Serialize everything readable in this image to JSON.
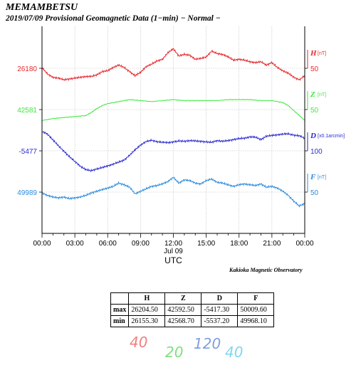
{
  "header": {
    "station": "MEMAMBETSU",
    "subtitle": "2019/07/09  Provisional Geomagnetic Data (1−min)  − Normal −"
  },
  "footer": {
    "observatory": "Kakioka Magnetic Observatory"
  },
  "colors": {
    "H": "#e8262b",
    "Z": "#3ce83c",
    "D": "#2b2bd0",
    "F": "#2c8be0"
  },
  "chart_data": {
    "type": "line",
    "xlabel": "UTC",
    "x_ticks": [
      "00:00",
      "03:00",
      "06:00",
      "09:00",
      "12:00",
      "15:00",
      "18:00",
      "21:00",
      "00:00"
    ],
    "x_date_label": "Jul 09",
    "x_date_at": "12:00",
    "xlim": [
      "00:00",
      "24:00"
    ],
    "grid": true,
    "series": [
      {
        "name": "H",
        "unit": "[nT]",
        "color": "#e8262b",
        "left_label": "26180",
        "right_label": "50",
        "points": [
          [
            0,
            26181
          ],
          [
            0.5,
            26173
          ],
          [
            1,
            26169
          ],
          [
            1.5,
            26168
          ],
          [
            2,
            26166
          ],
          [
            2.5,
            26167
          ],
          [
            3,
            26168
          ],
          [
            3.5,
            26169
          ],
          [
            4,
            26170
          ],
          [
            4.5,
            26170
          ],
          [
            5,
            26172
          ],
          [
            5.5,
            26176
          ],
          [
            6,
            26177
          ],
          [
            6.5,
            26181
          ],
          [
            7,
            26184
          ],
          [
            7.5,
            26181
          ],
          [
            8,
            26176
          ],
          [
            8.5,
            26171
          ],
          [
            9,
            26175
          ],
          [
            9.5,
            26182
          ],
          [
            10,
            26185
          ],
          [
            10.5,
            26189
          ],
          [
            11,
            26191
          ],
          [
            11.5,
            26199
          ],
          [
            12,
            26204
          ],
          [
            12.5,
            26195
          ],
          [
            13,
            26197
          ],
          [
            13.5,
            26196
          ],
          [
            14,
            26191
          ],
          [
            14.5,
            26192
          ],
          [
            15,
            26194
          ],
          [
            15.5,
            26201
          ],
          [
            16,
            26198
          ],
          [
            16.5,
            26197
          ],
          [
            17,
            26194
          ],
          [
            17.5,
            26190
          ],
          [
            18,
            26191
          ],
          [
            18.5,
            26190
          ],
          [
            19,
            26188
          ],
          [
            19.5,
            26187
          ],
          [
            20,
            26188
          ],
          [
            20.5,
            26184
          ],
          [
            21,
            26187
          ],
          [
            21.5,
            26181
          ],
          [
            22,
            26177
          ],
          [
            22.5,
            26174
          ],
          [
            23,
            26169
          ],
          [
            23.5,
            26166
          ],
          [
            24,
            26171
          ]
        ]
      },
      {
        "name": "Z",
        "unit": "[nT]",
        "color": "#3ce83c",
        "left_label": "42581",
        "right_label": "50",
        "points": [
          [
            0,
            42570
          ],
          [
            1,
            42572
          ],
          [
            2,
            42573
          ],
          [
            3,
            42574
          ],
          [
            4,
            42575
          ],
          [
            4.5,
            42578
          ],
          [
            5,
            42582
          ],
          [
            5.5,
            42585
          ],
          [
            6,
            42587
          ],
          [
            7,
            42589
          ],
          [
            8,
            42591
          ],
          [
            9,
            42590
          ],
          [
            10,
            42589
          ],
          [
            11,
            42590
          ],
          [
            12,
            42591
          ],
          [
            13,
            42590
          ],
          [
            14,
            42590
          ],
          [
            15,
            42590
          ],
          [
            16,
            42590
          ],
          [
            17,
            42591
          ],
          [
            18,
            42591
          ],
          [
            19,
            42591
          ],
          [
            20,
            42590
          ],
          [
            21,
            42590
          ],
          [
            22,
            42588
          ],
          [
            22.5,
            42585
          ],
          [
            23,
            42580
          ],
          [
            23.5,
            42575
          ],
          [
            24,
            42570
          ]
        ]
      },
      {
        "name": "D",
        "unit": "[x0.1arcmin]",
        "color": "#2b2bd0",
        "left_label": "-5477",
        "right_label": "100",
        "points": [
          [
            0,
            -5420
          ],
          [
            0.5,
            -5428
          ],
          [
            1,
            -5445
          ],
          [
            1.5,
            -5462
          ],
          [
            2,
            -5478
          ],
          [
            2.5,
            -5494
          ],
          [
            3,
            -5508
          ],
          [
            3.5,
            -5522
          ],
          [
            4,
            -5532
          ],
          [
            4.5,
            -5535
          ],
          [
            5,
            -5530
          ],
          [
            5.5,
            -5526
          ],
          [
            6,
            -5521
          ],
          [
            6.5,
            -5516
          ],
          [
            7,
            -5510
          ],
          [
            7.5,
            -5504
          ],
          [
            8,
            -5490
          ],
          [
            8.5,
            -5474
          ],
          [
            9,
            -5460
          ],
          [
            9.5,
            -5450
          ],
          [
            10,
            -5446
          ],
          [
            10.5,
            -5450
          ],
          [
            11,
            -5452
          ],
          [
            11.5,
            -5453
          ],
          [
            12,
            -5451
          ],
          [
            12.5,
            -5448
          ],
          [
            13,
            -5449
          ],
          [
            13.5,
            -5447
          ],
          [
            14,
            -5448
          ],
          [
            14.5,
            -5449
          ],
          [
            15,
            -5451
          ],
          [
            15.5,
            -5452
          ],
          [
            16,
            -5447
          ],
          [
            16.5,
            -5449
          ],
          [
            17,
            -5447
          ],
          [
            17.5,
            -5444
          ],
          [
            18,
            -5441
          ],
          [
            18.5,
            -5440
          ],
          [
            19,
            -5436
          ],
          [
            19.5,
            -5437
          ],
          [
            20,
            -5444
          ],
          [
            20.5,
            -5434
          ],
          [
            21,
            -5432
          ],
          [
            21.5,
            -5430
          ],
          [
            22,
            -5428
          ],
          [
            22.5,
            -5427
          ],
          [
            23,
            -5431
          ],
          [
            23.5,
            -5433
          ],
          [
            24,
            -5440
          ]
        ]
      },
      {
        "name": "F",
        "unit": "[nT]",
        "color": "#2c8be0",
        "left_label": "49989",
        "right_label": "50",
        "points": [
          [
            0,
            49988
          ],
          [
            0.5,
            49985
          ],
          [
            1,
            49983
          ],
          [
            1.5,
            49982
          ],
          [
            2,
            49983
          ],
          [
            2.5,
            49981
          ],
          [
            3,
            49982
          ],
          [
            3.5,
            49983
          ],
          [
            4,
            49985
          ],
          [
            4.5,
            49988
          ],
          [
            5,
            49990
          ],
          [
            5.5,
            49992
          ],
          [
            6,
            49994
          ],
          [
            6.5,
            49996
          ],
          [
            7,
            50000
          ],
          [
            7.5,
            49998
          ],
          [
            8,
            49995
          ],
          [
            8.5,
            49987
          ],
          [
            9,
            49990
          ],
          [
            9.5,
            49993
          ],
          [
            10,
            49996
          ],
          [
            10.5,
            49997
          ],
          [
            11,
            49999
          ],
          [
            11.5,
            50002
          ],
          [
            12,
            50007
          ],
          [
            12.5,
            50000
          ],
          [
            13,
            50004
          ],
          [
            13.5,
            50003
          ],
          [
            14,
            50000
          ],
          [
            14.5,
            49999
          ],
          [
            15,
            50003
          ],
          [
            15.5,
            50005
          ],
          [
            16,
            50001
          ],
          [
            16.5,
            50000
          ],
          [
            17,
            49998
          ],
          [
            17.5,
            49996
          ],
          [
            18,
            49998
          ],
          [
            18.5,
            49999
          ],
          [
            19,
            49998
          ],
          [
            19.5,
            49997
          ],
          [
            20,
            49999
          ],
          [
            20.5,
            49995
          ],
          [
            21,
            49996
          ],
          [
            21.5,
            49994
          ],
          [
            22,
            49990
          ],
          [
            22.5,
            49985
          ],
          [
            23,
            49978
          ],
          [
            23.5,
            49972
          ],
          [
            24,
            49975
          ]
        ]
      }
    ],
    "stats_table": {
      "columns": [
        "H",
        "Z",
        "D",
        "F"
      ],
      "rows": [
        {
          "label": "max",
          "values": [
            "26204.50",
            "42592.50",
            "-5417.30",
            "50009.60"
          ]
        },
        {
          "label": "min",
          "values": [
            "26155.30",
            "42568.70",
            "-5537.20",
            "49968.10"
          ]
        }
      ]
    },
    "scale_marks": [
      {
        "text": "40",
        "color": "#f08080"
      },
      {
        "text": "20",
        "color": "#7fe07f"
      },
      {
        "text": "120",
        "color": "#7f9fe0"
      },
      {
        "text": "40",
        "color": "#7fd7f0"
      }
    ]
  }
}
